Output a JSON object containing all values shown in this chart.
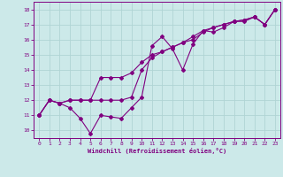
{
  "xlabel": "Windchill (Refroidissement éolien,°C)",
  "ylabel": "",
  "background_color": "#cce9e9",
  "line_color": "#800080",
  "grid_color": "#b0d4d4",
  "xlim": [
    -0.5,
    23.5
  ],
  "ylim": [
    9.5,
    18.5
  ],
  "xticks": [
    0,
    1,
    2,
    3,
    4,
    5,
    6,
    7,
    8,
    9,
    10,
    11,
    12,
    13,
    14,
    15,
    16,
    17,
    18,
    19,
    20,
    21,
    22,
    23
  ],
  "yticks": [
    10,
    11,
    12,
    13,
    14,
    15,
    16,
    17,
    18
  ],
  "series": [
    [
      11.0,
      12.0,
      11.8,
      11.5,
      10.8,
      9.8,
      11.0,
      10.9,
      10.8,
      11.5,
      12.2,
      15.6,
      16.2,
      15.4,
      14.0,
      15.7,
      16.6,
      16.5,
      16.8,
      17.2,
      17.2,
      17.5,
      17.0,
      18.0
    ],
    [
      11.0,
      12.0,
      11.8,
      12.0,
      12.0,
      12.0,
      12.0,
      12.0,
      12.0,
      12.2,
      14.0,
      14.8,
      15.2,
      15.5,
      15.8,
      16.0,
      16.5,
      16.8,
      17.0,
      17.2,
      17.3,
      17.5,
      17.0,
      18.0
    ],
    [
      11.0,
      12.0,
      11.8,
      12.0,
      12.0,
      12.0,
      13.5,
      13.5,
      13.5,
      13.8,
      14.5,
      15.0,
      15.2,
      15.5,
      15.8,
      16.2,
      16.6,
      16.8,
      17.0,
      17.2,
      17.3,
      17.5,
      17.0,
      18.0
    ]
  ]
}
